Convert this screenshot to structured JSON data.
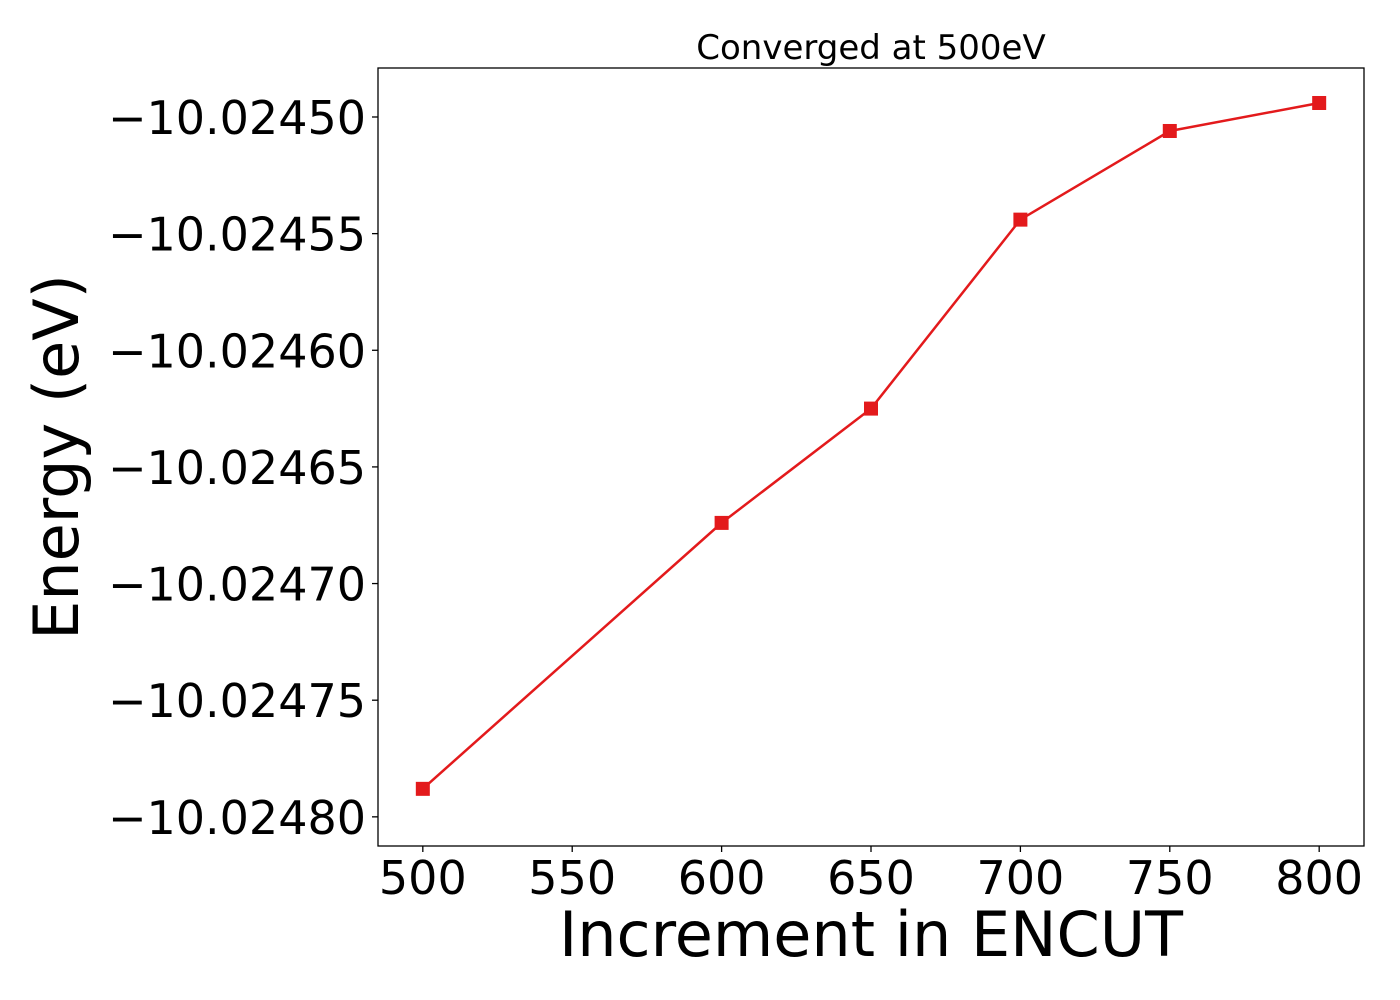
{
  "chart_data": {
    "type": "line",
    "title": "Converged at 500eV",
    "xlabel": "Increment in ENCUT",
    "ylabel": "Energy (eV)",
    "x": [
      500,
      600,
      650,
      700,
      750,
      800
    ],
    "series": [
      {
        "values": [
          -10.024788,
          -10.024674,
          -10.024625,
          -10.024544,
          -10.024506,
          -10.024494
        ],
        "color": "#e31a1c",
        "marker": "square"
      }
    ],
    "xticks": [
      500,
      550,
      600,
      650,
      700,
      750,
      800
    ],
    "xtick_labels": [
      "500",
      "550",
      "600",
      "650",
      "700",
      "750",
      "800"
    ],
    "yticks": [
      -10.0245,
      -10.02455,
      -10.0246,
      -10.02465,
      -10.0247,
      -10.02475,
      -10.0248
    ],
    "ytick_labels": [
      "−10.02450",
      "−10.02455",
      "−10.02460",
      "−10.02465",
      "−10.02470",
      "−10.02475",
      "−10.02480"
    ],
    "xlim": [
      485,
      815
    ],
    "ylim": [
      -10.0248125,
      -10.024479
    ],
    "grid": false,
    "legend": "none"
  }
}
